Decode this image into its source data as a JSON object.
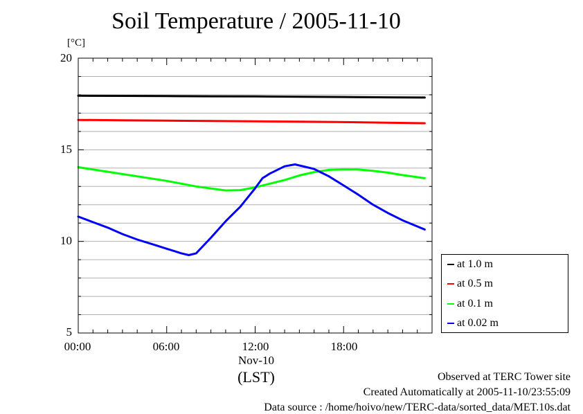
{
  "chart_data": {
    "type": "line",
    "title": "Soil Temperature / 2005-11-10",
    "ylabel": "[°C]",
    "xlabel": "(LST)",
    "date_label": "Nov-10",
    "ylim": [
      5,
      20
    ],
    "xlim": [
      0,
      24
    ],
    "y_ticks": [
      "5",
      "10",
      "15",
      "20"
    ],
    "y_tick_values": [
      5,
      10,
      15,
      20
    ],
    "x_ticks": [
      "00:00",
      "06:00",
      "12:00",
      "18:00"
    ],
    "x_tick_values": [
      0,
      6,
      12,
      18
    ],
    "grid": true,
    "legend_position": "bottom-right outside",
    "series": [
      {
        "name": "at 1.0 m",
        "color": "#000000",
        "x": [
          0,
          3,
          6,
          9,
          12,
          15,
          18,
          21,
          23.5
        ],
        "y": [
          17.95,
          17.94,
          17.93,
          17.92,
          17.91,
          17.89,
          17.88,
          17.86,
          17.85
        ]
      },
      {
        "name": "at 0.5 m",
        "color": "#ff0000",
        "x": [
          0,
          3,
          6,
          9,
          12,
          15,
          18,
          21,
          23.5
        ],
        "y": [
          16.63,
          16.61,
          16.59,
          16.57,
          16.55,
          16.53,
          16.51,
          16.48,
          16.45
        ]
      },
      {
        "name": "at 0.1 m",
        "color": "#00ff00",
        "x": [
          0,
          2,
          4,
          6,
          8,
          10,
          11,
          12,
          13,
          14,
          15,
          16,
          17,
          18,
          19,
          20,
          21,
          22,
          23.5
        ],
        "y": [
          14.05,
          13.8,
          13.55,
          13.3,
          13.0,
          12.78,
          12.8,
          12.95,
          13.15,
          13.35,
          13.6,
          13.78,
          13.9,
          13.93,
          13.92,
          13.85,
          13.75,
          13.62,
          13.45
        ]
      },
      {
        "name": "at 0.02 m",
        "color": "#0000ff",
        "x": [
          0,
          1,
          2,
          3,
          4,
          5,
          6,
          7,
          7.5,
          8,
          9,
          10,
          11,
          12,
          12.5,
          13,
          14,
          14.7,
          15.5,
          16,
          17,
          18,
          19,
          20,
          21,
          22,
          23.5
        ],
        "y": [
          11.35,
          11.05,
          10.75,
          10.4,
          10.1,
          9.85,
          9.6,
          9.35,
          9.25,
          9.35,
          10.2,
          11.1,
          11.9,
          12.9,
          13.45,
          13.7,
          14.1,
          14.2,
          14.05,
          13.95,
          13.55,
          13.05,
          12.55,
          12.0,
          11.55,
          11.15,
          10.65
        ]
      }
    ]
  },
  "footer": {
    "line1": "Observed at TERC Tower site",
    "line2": "Created Automatically at 2005-11-10/23:55:09",
    "line3": "Data source : /home/hoivo/new/TERC-data/sorted_data/MET.10s.dat"
  }
}
